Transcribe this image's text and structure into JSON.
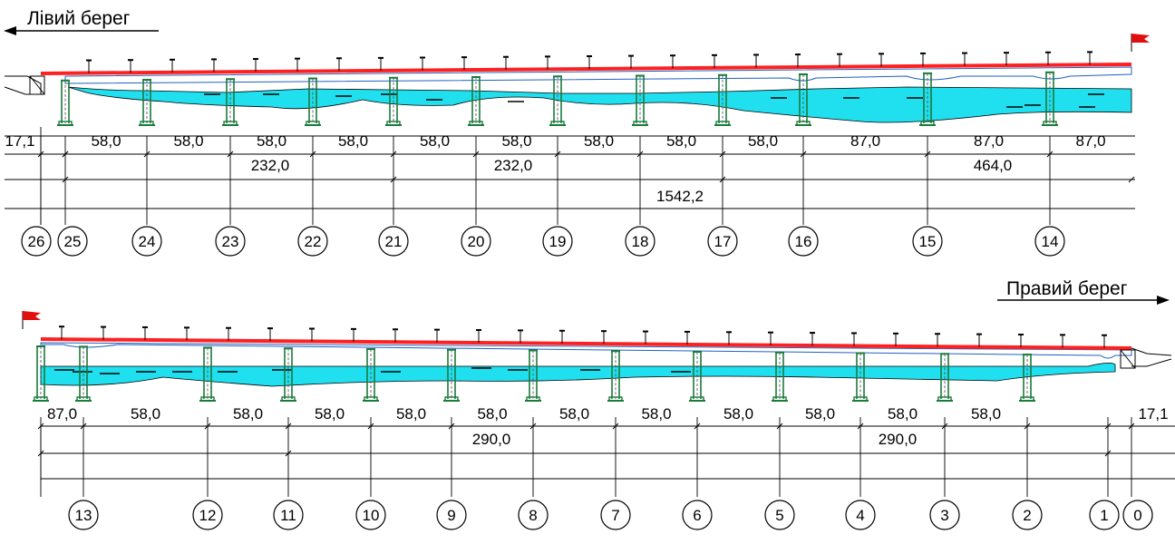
{
  "diagram": {
    "left_bank_label": "Лівий берег",
    "right_bank_label": "Правий берег",
    "colors": {
      "deck": "#ff2020",
      "water": "#20e0f0",
      "pier": "#1a7a3a",
      "line": "#000000",
      "flag": "#e01010"
    },
    "top_section": {
      "pier_axes": [
        "26",
        "25",
        "24",
        "23",
        "22",
        "21",
        "20",
        "19",
        "18",
        "17",
        "16",
        "15",
        "14"
      ],
      "spans": [
        "17,1",
        "58,0",
        "58,0",
        "58,0",
        "58,0",
        "58,0",
        "58,0",
        "58,0",
        "58,0",
        "58,0",
        "87,0",
        "87,0",
        "87,0"
      ],
      "groups": [
        "232,0",
        "232,0",
        "464,0"
      ],
      "total": "1542,2"
    },
    "bottom_section": {
      "pier_axes": [
        "13",
        "12",
        "11",
        "10",
        "9",
        "8",
        "7",
        "6",
        "5",
        "4",
        "3",
        "2",
        "1",
        "0"
      ],
      "spans": [
        "87,0",
        "58,0",
        "58,0",
        "58,0",
        "58,0",
        "58,0",
        "58,0",
        "58,0",
        "58,0",
        "58,0",
        "58,0",
        "58,0",
        "17,1"
      ],
      "groups": [
        "290,0",
        "290,0"
      ]
    }
  }
}
